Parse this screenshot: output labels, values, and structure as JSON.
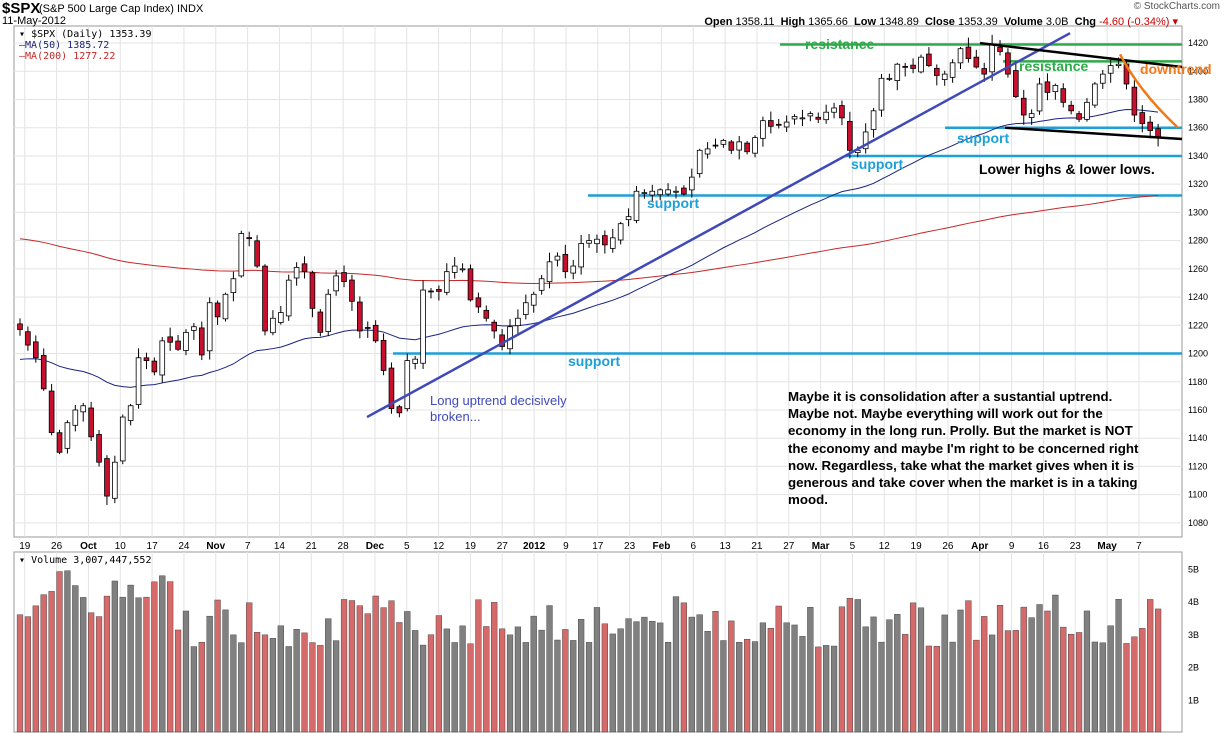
{
  "header": {
    "symbol": "$SPX",
    "symbol_desc": "(S&P 500 Large Cap Index) INDX",
    "date": "11-May-2012",
    "open_label": "Open",
    "open": "1358.11",
    "high_label": "High",
    "high": "1365.66",
    "low_label": "Low",
    "low": "1348.89",
    "close_label": "Close",
    "close": "1353.39",
    "volume_label": "Volume",
    "volume": "3.0B",
    "chg_label": "Chg",
    "chg": "-4.60 (-0.34%)",
    "brand": "© StockCharts.com"
  },
  "legend": {
    "price": "$SPX (Daily) 1353.39",
    "ma50": "MA(50) 1385.72",
    "ma200": "MA(200) 1277.22",
    "volume": "Volume 3,007,447,552"
  },
  "annotations": {
    "resistance_top": "resistance",
    "resistance_mid": "resistance",
    "downtrend": "downtrend",
    "support_1": "support",
    "support_2": "support",
    "support_3": "support",
    "support_4": "support",
    "lower_highs": "Lower highs & lower lows.",
    "uptrend_broken": "Long uptrend decisively broken...",
    "commentary": "Maybe it is consolidation after a sustantial uptrend. Maybe not.  Maybe everything will work out for the economy in the long run. Prolly.  But the market is NOT the economy and maybe I'm right to be concerned right now. Regardless, take what the market gives when it is generous  and take cover when the market is in a taking mood."
  },
  "colors": {
    "up_candle": "#ffffff",
    "down_candle": "#c8102e",
    "ma50": "#1a237e",
    "ma200": "#c62828",
    "support": "#1ea0d6",
    "resistance": "#2eaa4a",
    "trendline": "#3f4ab8",
    "downtrend": "#f07a1a",
    "vol_up": "#808080",
    "vol_down": "#d46a6a"
  },
  "chart_data": {
    "type": "candlestick",
    "title": "$SPX (S&P 500 Large Cap Index) INDX",
    "price_axis": {
      "ticks": [
        1080,
        1100,
        1120,
        1140,
        1160,
        1180,
        1200,
        1220,
        1240,
        1260,
        1280,
        1300,
        1320,
        1340,
        1360,
        1380,
        1400,
        1420
      ],
      "ylim": [
        1070,
        1425
      ]
    },
    "volume_axis": {
      "ticks": [
        "1B",
        "2B",
        "3B",
        "4B",
        "5B"
      ],
      "ylim": [
        0,
        5.5
      ]
    },
    "x_tick_labels": [
      "19",
      "26",
      "Oct",
      "10",
      "17",
      "24",
      "Nov",
      "7",
      "14",
      "21",
      "28",
      "Dec",
      "5",
      "12",
      "19",
      "27",
      "2012",
      "9",
      "17",
      "23",
      "Feb",
      "6",
      "13",
      "21",
      "27",
      "Mar",
      "5",
      "12",
      "19",
      "26",
      "Apr",
      "9",
      "16",
      "23",
      "May",
      "7"
    ],
    "x_bold_labels": [
      "Oct",
      "Nov",
      "Dec",
      "2012",
      "Feb",
      "Mar",
      "Apr",
      "May"
    ],
    "closes": [
      1217,
      1206,
      1197,
      1175,
      1144,
      1130,
      1151,
      1160,
      1163,
      1141,
      1123,
      1099,
      1123,
      1155,
      1163,
      1197,
      1195,
      1187,
      1209,
      1208,
      1203,
      1215,
      1219,
      1199,
      1236,
      1226,
      1242,
      1253,
      1285,
      1282,
      1262,
      1216,
      1225,
      1229,
      1252,
      1261,
      1258,
      1232,
      1215,
      1242,
      1255,
      1251,
      1237,
      1216,
      1218,
      1209,
      1188,
      1161,
      1158,
      1195,
      1196,
      1245,
      1244,
      1244,
      1258,
      1262,
      1260,
      1238,
      1233,
      1225,
      1216,
      1205,
      1219,
      1225,
      1236,
      1242,
      1253,
      1265,
      1269,
      1258,
      1262,
      1278,
      1280,
      1281,
      1277,
      1282,
      1292,
      1297,
      1315,
      1314,
      1315,
      1316,
      1316,
      1315,
      1313,
      1325,
      1344,
      1345,
      1347,
      1351,
      1344,
      1350,
      1343,
      1353,
      1365,
      1361,
      1362,
      1364,
      1368,
      1367,
      1370,
      1366,
      1371,
      1374,
      1367,
      1344,
      1344,
      1357,
      1372,
      1395,
      1395,
      1405,
      1403,
      1402,
      1410,
      1404,
      1397,
      1398,
      1406,
      1416,
      1409,
      1403,
      1398,
      1419,
      1414,
      1398,
      1382,
      1369,
      1370,
      1391,
      1385,
      1390,
      1378,
      1372,
      1366,
      1378,
      1391,
      1398,
      1404,
      1405,
      1391,
      1369,
      1363,
      1358,
      1353
    ],
    "ma50_last": 1385.72,
    "ma200_last": 1277.22,
    "volume_last": 3007447552,
    "horizontal_lines": [
      {
        "kind": "resistance",
        "price": 1419
      },
      {
        "kind": "resistance",
        "price": 1407
      },
      {
        "kind": "support",
        "price": 1360
      },
      {
        "kind": "support",
        "price": 1340
      },
      {
        "kind": "support",
        "price": 1312
      },
      {
        "kind": "support",
        "price": 1200
      }
    ],
    "trendlines": [
      {
        "kind": "uptrend",
        "from": {
          "date": "2011-11-25",
          "price": 1155
        },
        "to": {
          "date": "2012-04-17",
          "price": 1427
        }
      },
      {
        "kind": "downtrend-channel-top",
        "from": {
          "date": "2012-04-02",
          "price": 1420
        },
        "to": {
          "date": "2012-05-11",
          "price": 1403
        }
      },
      {
        "kind": "downtrend-channel-bottom",
        "from": {
          "date": "2012-04-10",
          "price": 1360
        },
        "to": {
          "date": "2012-05-11",
          "price": 1352
        }
      }
    ]
  }
}
